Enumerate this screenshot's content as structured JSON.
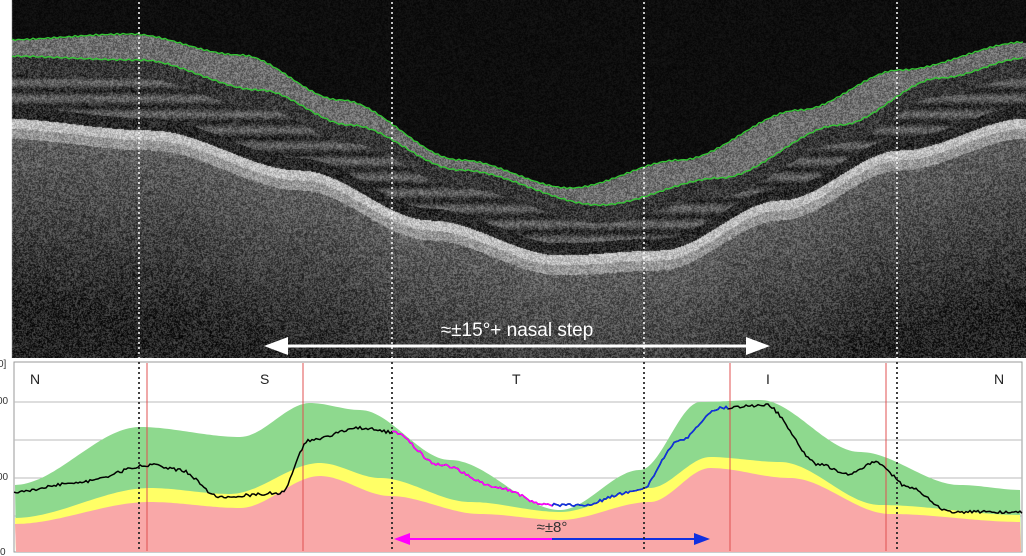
{
  "scan": {
    "annotation": "≈±15°+ nasal step"
  },
  "thickness_plot": {
    "sectors": [
      "N",
      "S",
      "T",
      "I",
      "N"
    ],
    "y_tick_fragments": [
      "0]",
      "00",
      "00",
      "0"
    ],
    "annotation": "≈±8°"
  },
  "colors": {
    "segmentation_line": "#35c435",
    "normal_band": "#8ed98e",
    "borderline_band": "#ffff66",
    "abnormal_band": "#f9a8a8",
    "sector_line": "#e05050",
    "profile_line": "#000000",
    "profile_highlight_left": "#ff00ff",
    "profile_highlight_right": "#1030e0",
    "arrow_white": "#ffffff"
  }
}
